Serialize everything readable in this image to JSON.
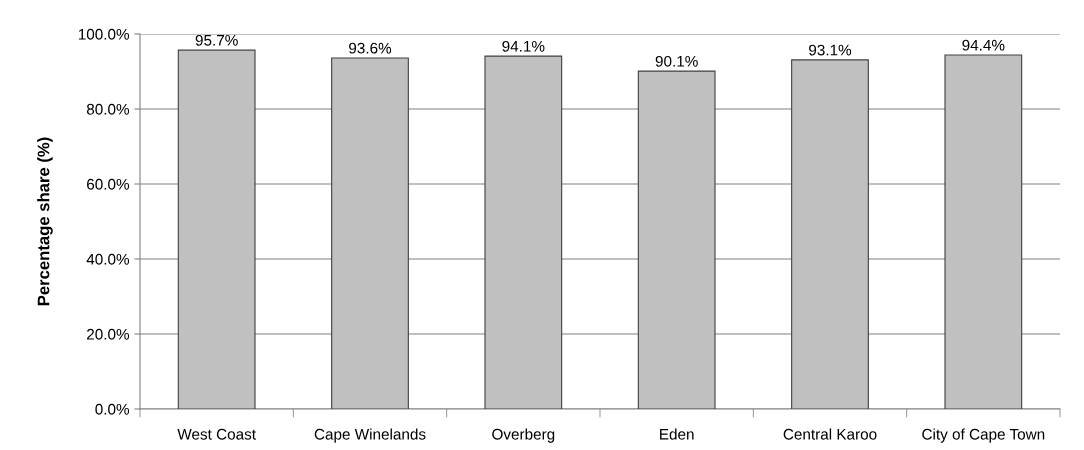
{
  "chart_data": {
    "type": "bar",
    "ylabel": "Percentage share (%)",
    "categories": [
      "West Coast",
      "Cape Winelands",
      "Overberg",
      "Eden",
      "Central Karoo",
      "City of Cape Town"
    ],
    "values": [
      95.7,
      93.6,
      94.1,
      90.1,
      93.1,
      94.4
    ],
    "value_labels": [
      "95.7%",
      "93.6%",
      "94.1%",
      "90.1%",
      "93.1%",
      "94.4%"
    ],
    "color": "#c0c0c0",
    "ylim": [
      0,
      100
    ],
    "yticks": [
      {
        "value": 0,
        "label": "0.0%"
      },
      {
        "value": 20,
        "label": "20.0%"
      },
      {
        "value": 40,
        "label": "40.0%"
      },
      {
        "value": 60,
        "label": "60.0%"
      },
      {
        "value": 80,
        "label": "80.0%"
      },
      {
        "value": 100,
        "label": "100.0%"
      }
    ],
    "grid": "y"
  }
}
